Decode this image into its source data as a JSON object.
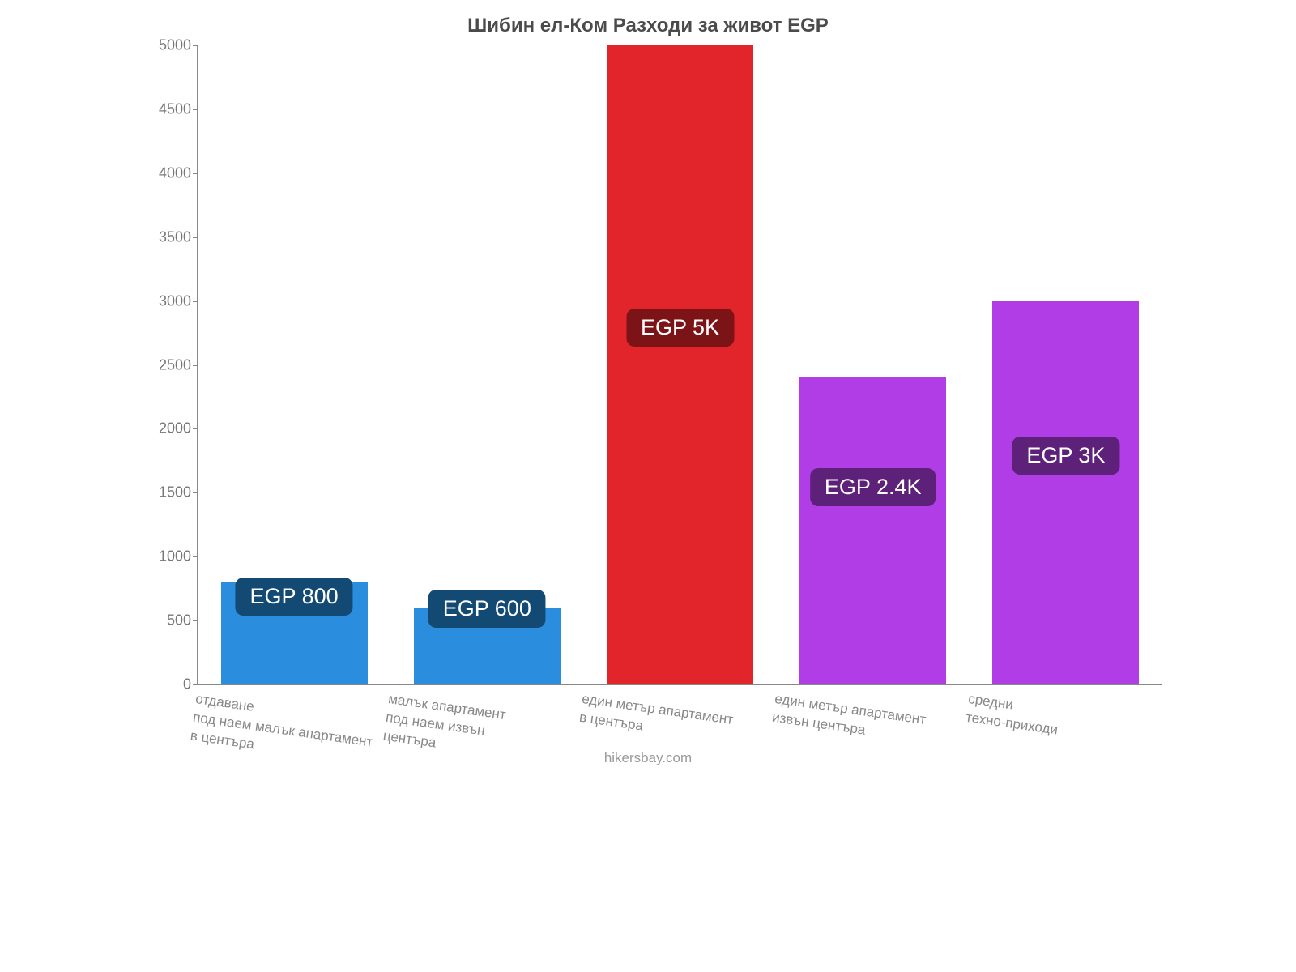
{
  "chart": {
    "type": "bar",
    "title": "Шибин ел-Ком Разходи за живот EGP",
    "title_fontsize": 24,
    "title_color": "#4b4b4b",
    "ylim": [
      0,
      5000
    ],
    "ytick_step": 500,
    "ytick_color": "#777777",
    "ytick_fontsize": 18,
    "axis_color": "#888888",
    "background_color": "#ffffff",
    "bar_width_pct": 76,
    "categories": [
      "отдаване\nпод наем малък апартамент\nв центъра",
      "малък апартамент\nпод наем извън\nцентъра",
      "един метър апартамент\nв центъра",
      "един метър апартамент\nизвън центъра",
      "средни\nтехно-приходи"
    ],
    "values": [
      800,
      600,
      5000,
      2400,
      3000
    ],
    "bar_colors": [
      "#2a8dde",
      "#2a8dde",
      "#e2252b",
      "#b03de6",
      "#b03de6"
    ],
    "badge_labels": [
      "EGP 800",
      "EGP 600",
      "EGP 5K",
      "EGP 2.4K",
      "EGP 3K"
    ],
    "badge_bg_colors": [
      "#134a73",
      "#134a73",
      "#7c1417",
      "#5d2179",
      "#5d2179"
    ],
    "badge_text_color": "#ffffff",
    "badge_fontsize": 27,
    "badge_y_values": [
      700,
      600,
      2800,
      1550,
      1800
    ],
    "xlabel_color": "#888888",
    "xlabel_fontsize": 17,
    "xlabel_rotate_deg": 8,
    "attribution": "hikersbay.com",
    "attribution_color": "#999999",
    "attribution_fontsize": 17
  }
}
